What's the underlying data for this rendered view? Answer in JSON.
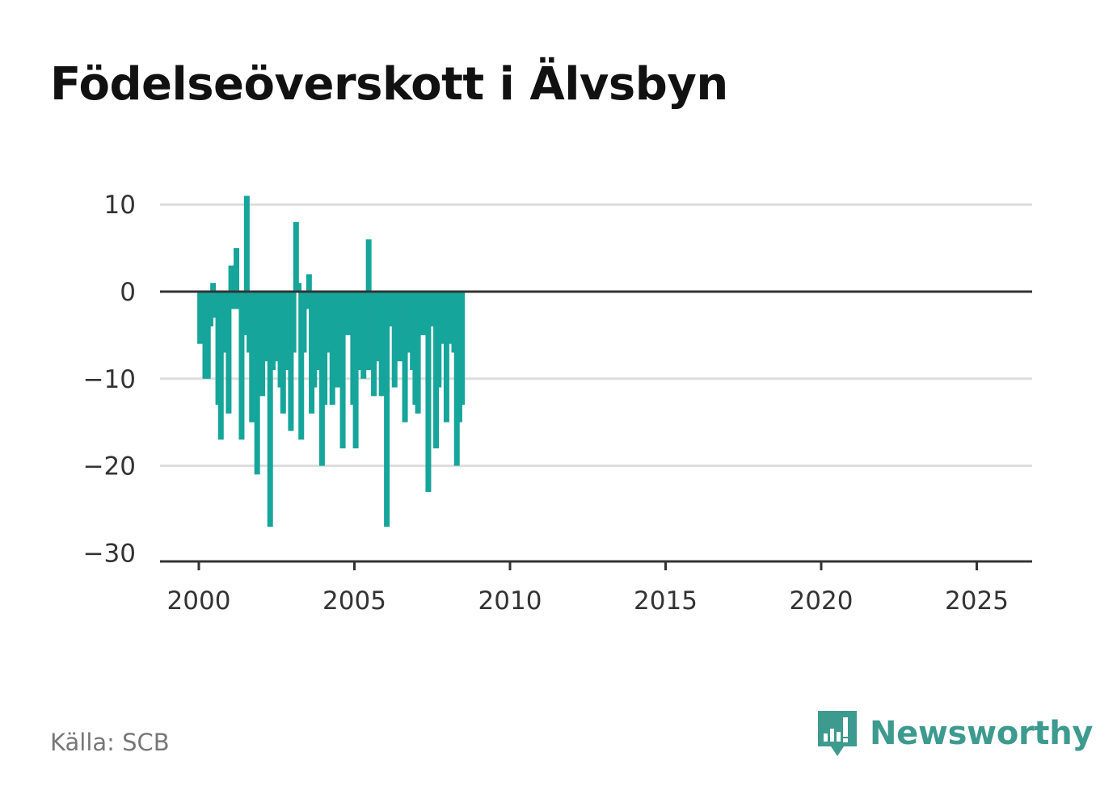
{
  "title": "Födelseöverskott i Älvsbyn",
  "source": "Källa: SCB",
  "brand": {
    "name": "Newsworthy",
    "icon": "newsworthy-logo-icon",
    "color": "#3d9a8f"
  },
  "colors": {
    "bar": "#16a59b",
    "grid": "#dddddd",
    "axis": "#333333"
  },
  "chart_data": {
    "type": "bar",
    "title": "Födelseöverskott i Älvsbyn",
    "xlabel": "",
    "ylabel": "",
    "x_start": "2000-01",
    "frequency": "monthly",
    "ylim": [
      -30,
      10
    ],
    "xlim": [
      2000,
      2025
    ],
    "yticks": [
      10,
      0,
      -10,
      -20,
      -30
    ],
    "ytick_labels": [
      "10",
      "0",
      "−10",
      "−20",
      "−30"
    ],
    "xticks": [
      2000,
      2005,
      2010,
      2015,
      2020,
      2025
    ],
    "xtick_labels": [
      "2000",
      "2005",
      "2010",
      "2015",
      "2020",
      "2025"
    ],
    "grid": true,
    "legend": "none",
    "values": [
      -6,
      -4,
      -10,
      -10,
      -4,
      1,
      -3,
      -13,
      -17,
      -7,
      -1,
      -14,
      3,
      -2,
      5,
      -2,
      -17,
      -5,
      11,
      -7,
      -15,
      -9,
      -21,
      -5,
      -12,
      -8,
      -4,
      -27,
      -9,
      -7,
      -8,
      -11,
      -14,
      -9,
      0,
      -16,
      -7,
      8,
      1,
      -17,
      -7,
      -2,
      2,
      -14,
      -11,
      -3,
      -9,
      -20,
      -13,
      -7,
      -4,
      -13,
      -10,
      -11,
      -4,
      -18,
      -1,
      -5,
      -3,
      -13,
      -18,
      -9,
      -1,
      -10,
      -9,
      6,
      -9,
      -12,
      -8,
      -5,
      -12,
      -10,
      -27,
      -4,
      0,
      -11,
      -4,
      -8,
      0,
      -15,
      -4,
      -7,
      -9,
      -13,
      -14,
      -5,
      -5,
      0,
      -23,
      -4,
      0,
      -18,
      -11,
      -6,
      -4,
      -15,
      -4,
      -6,
      -7,
      -20,
      -15,
      -13
    ]
  }
}
